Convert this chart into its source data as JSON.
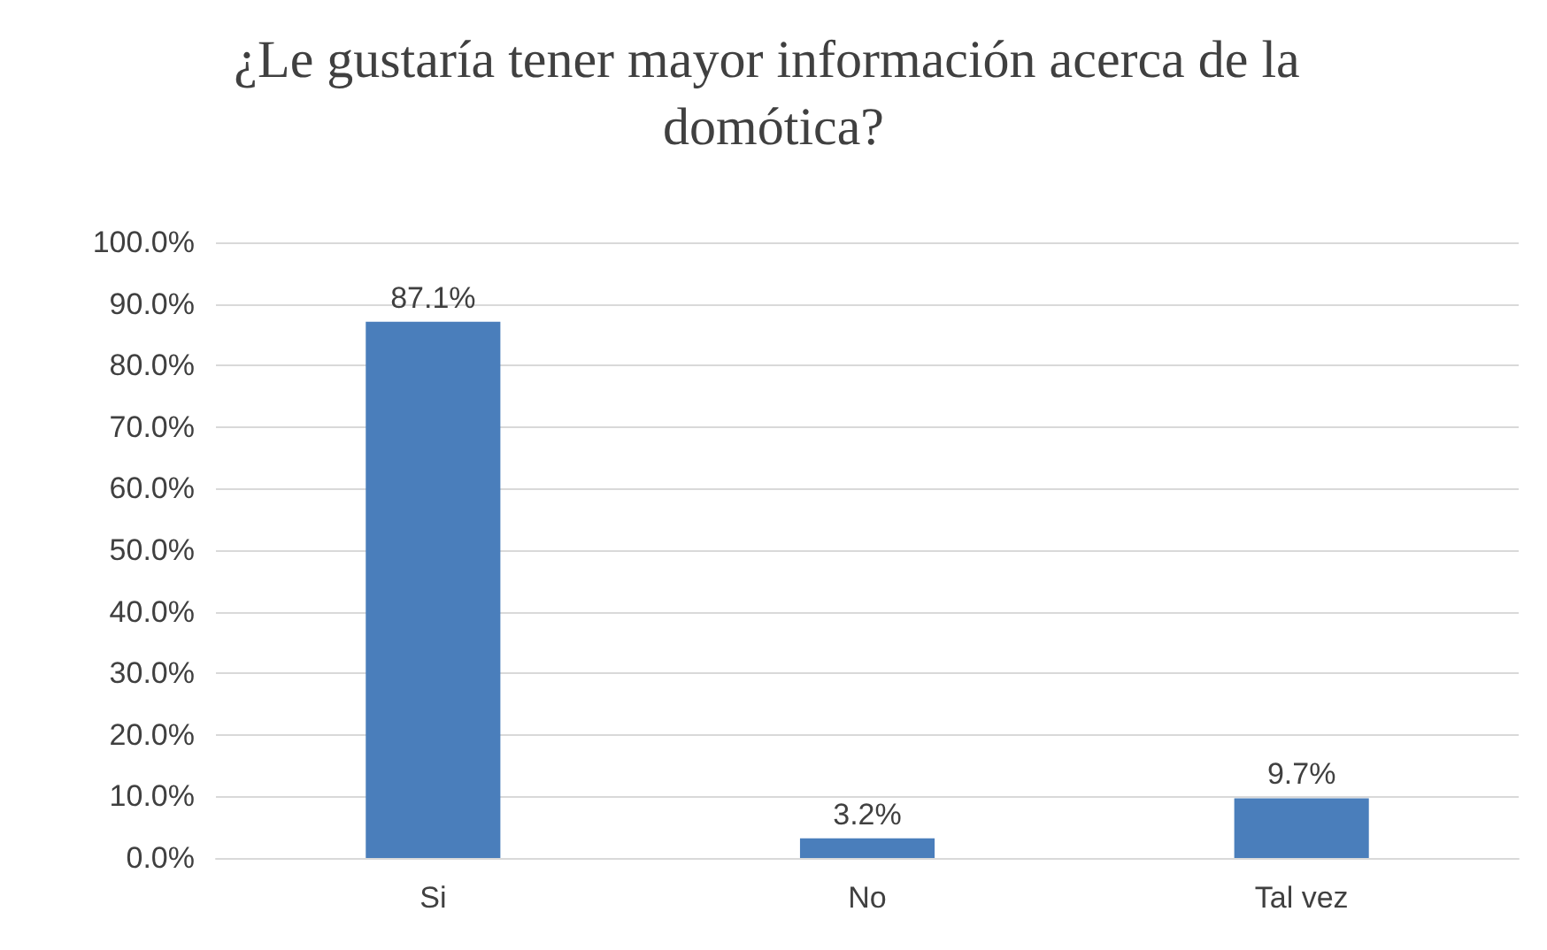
{
  "chart_data": {
    "type": "bar",
    "title": "¿Le gustaría tener mayor información acerca de la domótica?",
    "categories": [
      "Si",
      "No",
      "Tal vez"
    ],
    "values": [
      87.1,
      3.2,
      9.7
    ],
    "value_labels": [
      "87.1%",
      "3.2%",
      "9.7%"
    ],
    "color": "#4a7ebb",
    "ylim": [
      0,
      100
    ],
    "yticks": [
      {
        "value": 0,
        "label": "0.0%"
      },
      {
        "value": 10,
        "label": "10.0%"
      },
      {
        "value": 20,
        "label": "20.0%"
      },
      {
        "value": 30,
        "label": "30.0%"
      },
      {
        "value": 40,
        "label": "40.0%"
      },
      {
        "value": 50,
        "label": "50.0%"
      },
      {
        "value": 60,
        "label": "60.0%"
      },
      {
        "value": 70,
        "label": "70.0%"
      },
      {
        "value": 80,
        "label": "80.0%"
      },
      {
        "value": 90,
        "label": "90.0%"
      },
      {
        "value": 100,
        "label": "100.0%"
      }
    ],
    "grid": "y"
  }
}
